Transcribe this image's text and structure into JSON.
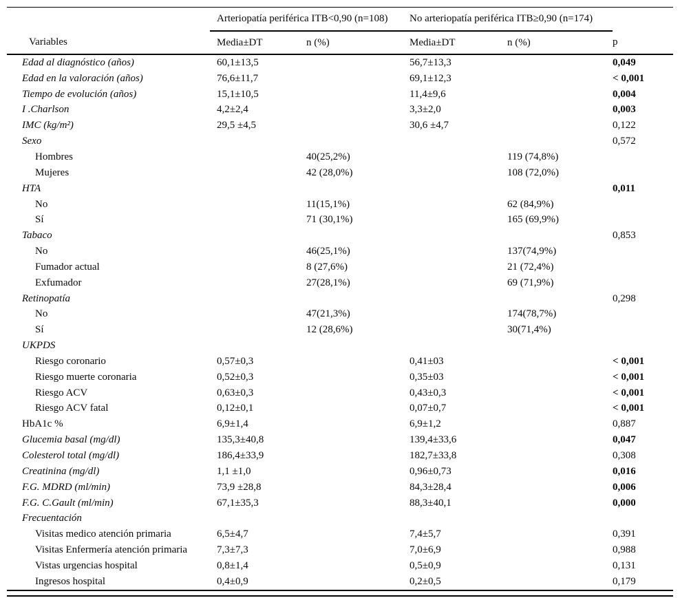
{
  "colors": {
    "text": "#0a0a0a",
    "background": "#ffffff"
  },
  "table": {
    "col_variables": "Variables",
    "group1": "Arteriopatía periférica ITB<0,90 (n=108)",
    "group2": "No arteriopatía periférica ITB≥0,90 (n=174)",
    "col_media_group1": "Media±DT",
    "col_n_group1": "n (%)",
    "col_media_group2": "Media±DT",
    "col_n_group2": "n (%)",
    "col_p": "p",
    "rows": [
      {
        "label": "Edad al diagnóstico (años)",
        "italic": true,
        "indent": false,
        "m1": "60,1±13,5",
        "n1": "",
        "m2": "56,7±13,3",
        "n2": "",
        "p": "0,049",
        "pb": true
      },
      {
        "label": "Edad en la valoración (años)",
        "italic": true,
        "indent": false,
        "m1": "76,6±11,7",
        "n1": "",
        "m2": "69,1±12,3",
        "n2": "",
        "p": "< 0,001",
        "pb": true
      },
      {
        "label": "Tiempo de evolución (años)",
        "italic": true,
        "indent": false,
        "m1": "15,1±10,5",
        "n1": "",
        "m2": "11,4±9,6",
        "n2": "",
        "p": "0,004",
        "pb": true
      },
      {
        "label": "I .Charlson",
        "italic": true,
        "indent": false,
        "m1": "4,2±2,4",
        "n1": "",
        "m2": "3,3±2,0",
        "n2": "",
        "p": "0,003",
        "pb": true
      },
      {
        "label": "IMC (kg/m²)",
        "italic": true,
        "indent": false,
        "m1": "29,5 ±4,5",
        "n1": "",
        "m2": "30,6 ±4,7",
        "n2": "",
        "p": "0,122",
        "pb": false
      },
      {
        "label": "Sexo",
        "italic": true,
        "indent": false,
        "m1": "",
        "n1": "",
        "m2": "",
        "n2": "",
        "p": "0,572",
        "pb": false
      },
      {
        "label": "Hombres",
        "italic": false,
        "indent": true,
        "m1": "",
        "n1": "40(25,2%)",
        "m2": "",
        "n2": "119 (74,8%)",
        "p": "",
        "pb": false
      },
      {
        "label": "Mujeres",
        "italic": false,
        "indent": true,
        "m1": "",
        "n1": "42 (28,0%)",
        "m2": "",
        "n2": "108 (72,0%)",
        "p": "",
        "pb": false
      },
      {
        "label": "HTA",
        "italic": true,
        "indent": false,
        "m1": "",
        "n1": "",
        "m2": "",
        "n2": "",
        "p": "0,011",
        "pb": true
      },
      {
        "label": "No",
        "italic": false,
        "indent": true,
        "m1": "",
        "n1": "11(15,1%)",
        "m2": "",
        "n2": "62 (84,9%)",
        "p": "",
        "pb": false
      },
      {
        "label": "Sí",
        "italic": false,
        "indent": true,
        "m1": "",
        "n1": "71 (30,1%)",
        "m2": "",
        "n2": "165 (69,9%)",
        "p": "",
        "pb": false
      },
      {
        "label": "Tabaco",
        "italic": true,
        "indent": false,
        "m1": "",
        "n1": "",
        "m2": "",
        "n2": "",
        "p": "0,853",
        "pb": false
      },
      {
        "label": "No",
        "italic": false,
        "indent": true,
        "m1": "",
        "n1": "46(25,1%)",
        "m2": "",
        "n2": "137(74,9%)",
        "p": "",
        "pb": false
      },
      {
        "label": "Fumador actual",
        "italic": false,
        "indent": true,
        "m1": "",
        "n1": "8 (27,6%)",
        "m2": "",
        "n2": "21 (72,4%)",
        "p": "",
        "pb": false
      },
      {
        "label": "Exfumador",
        "italic": false,
        "indent": true,
        "m1": "",
        "n1": "27(28,1%)",
        "m2": "",
        "n2": "69 (71,9%)",
        "p": "",
        "pb": false
      },
      {
        "label": "Retinopatía",
        "italic": true,
        "indent": false,
        "m1": "",
        "n1": "",
        "m2": "",
        "n2": "",
        "p": "0,298",
        "pb": false
      },
      {
        "label": "No",
        "italic": false,
        "indent": true,
        "m1": "",
        "n1": "47(21,3%)",
        "m2": "",
        "n2": "174(78,7%)",
        "p": "",
        "pb": false
      },
      {
        "label": "Sí",
        "italic": false,
        "indent": true,
        "m1": "",
        "n1": "12 (28,6%)",
        "m2": "",
        "n2": "30(71,4%)",
        "p": "",
        "pb": false
      },
      {
        "label": "UKPDS",
        "italic": true,
        "indent": false,
        "m1": "",
        "n1": "",
        "m2": "",
        "n2": "",
        "p": "",
        "pb": false
      },
      {
        "label": "Riesgo coronario",
        "italic": false,
        "indent": true,
        "m1": "0,57±0,3",
        "n1": "",
        "m2": "0,41±03",
        "n2": "",
        "p": "< 0,001",
        "pb": true
      },
      {
        "label": "Riesgo muerte coronaria",
        "italic": false,
        "indent": true,
        "m1": "0,52±0,3",
        "n1": "",
        "m2": "0,35±03",
        "n2": "",
        "p": "< 0,001",
        "pb": true
      },
      {
        "label": "Riesgo ACV",
        "italic": false,
        "indent": true,
        "m1": "0,63±0,3",
        "n1": "",
        "m2": "0,43±0,3",
        "n2": "",
        "p": "< 0,001",
        "pb": true
      },
      {
        "label": "Riesgo ACV fatal",
        "italic": false,
        "indent": true,
        "m1": "0,12±0,1",
        "n1": "",
        "m2": "0,07±0,7",
        "n2": "",
        "p": "< 0,001",
        "pb": true
      },
      {
        "label": "HbA1c %",
        "italic": false,
        "indent": false,
        "m1": "6,9±1,4",
        "n1": "",
        "m2": "6,9±1,2",
        "n2": "",
        "p": "0,887",
        "pb": false
      },
      {
        "label": "Glucemia basal (mg/dl)",
        "italic": true,
        "indent": false,
        "m1": "135,3±40,8",
        "n1": "",
        "m2": "139,4±33,6",
        "n2": "",
        "p": "0,047",
        "pb": true
      },
      {
        "label": "Colesterol total (mg/dl)",
        "italic": true,
        "indent": false,
        "m1": "186,4±33,9",
        "n1": "",
        "m2": "182,7±33,8",
        "n2": "",
        "p": "0,308",
        "pb": false
      },
      {
        "label": "Creatinina (mg/dl)",
        "italic": true,
        "indent": false,
        "m1": "1,1 ±1,0",
        "n1": "",
        "m2": "0,96±0,73",
        "n2": "",
        "p": "0,016",
        "pb": true
      },
      {
        "label": "F.G. MDRD (ml/min)",
        "italic": true,
        "indent": false,
        "m1": "73,9 ±28,8",
        "n1": "",
        "m2": "84,3±28,4",
        "n2": "",
        "p": "0,006",
        "pb": true
      },
      {
        "label": "F.G. C.Gault (ml/min)",
        "italic": true,
        "indent": false,
        "m1": "67,1±35,3",
        "n1": "",
        "m2": "88,3±40,1",
        "n2": "",
        "p": "0,000",
        "pb": true
      },
      {
        "label": "Frecuentación",
        "italic": true,
        "indent": false,
        "m1": "",
        "n1": "",
        "m2": "",
        "n2": "",
        "p": "",
        "pb": false
      },
      {
        "label": "Visitas medico atención primaria",
        "italic": false,
        "indent": true,
        "m1": "6,5±4,7",
        "n1": "",
        "m2": "7,4±5,7",
        "n2": "",
        "p": "0,391",
        "pb": false
      },
      {
        "label": "Visitas Enfermería atención primaria",
        "italic": false,
        "indent": true,
        "m1": "7,3±7,3",
        "n1": "",
        "m2": "7,0±6,9",
        "n2": "",
        "p": "0,988",
        "pb": false
      },
      {
        "label": "Vistas urgencias hospital",
        "italic": false,
        "indent": true,
        "m1": "0,8±1,4",
        "n1": "",
        "m2": "0,5±0,9",
        "n2": "",
        "p": "0,131",
        "pb": false
      },
      {
        "label": "Ingresos hospital",
        "italic": false,
        "indent": true,
        "m1": "0,4±0,9",
        "n1": "",
        "m2": "0,2±0,5",
        "n2": "",
        "p": "0,179",
        "pb": false
      }
    ]
  }
}
